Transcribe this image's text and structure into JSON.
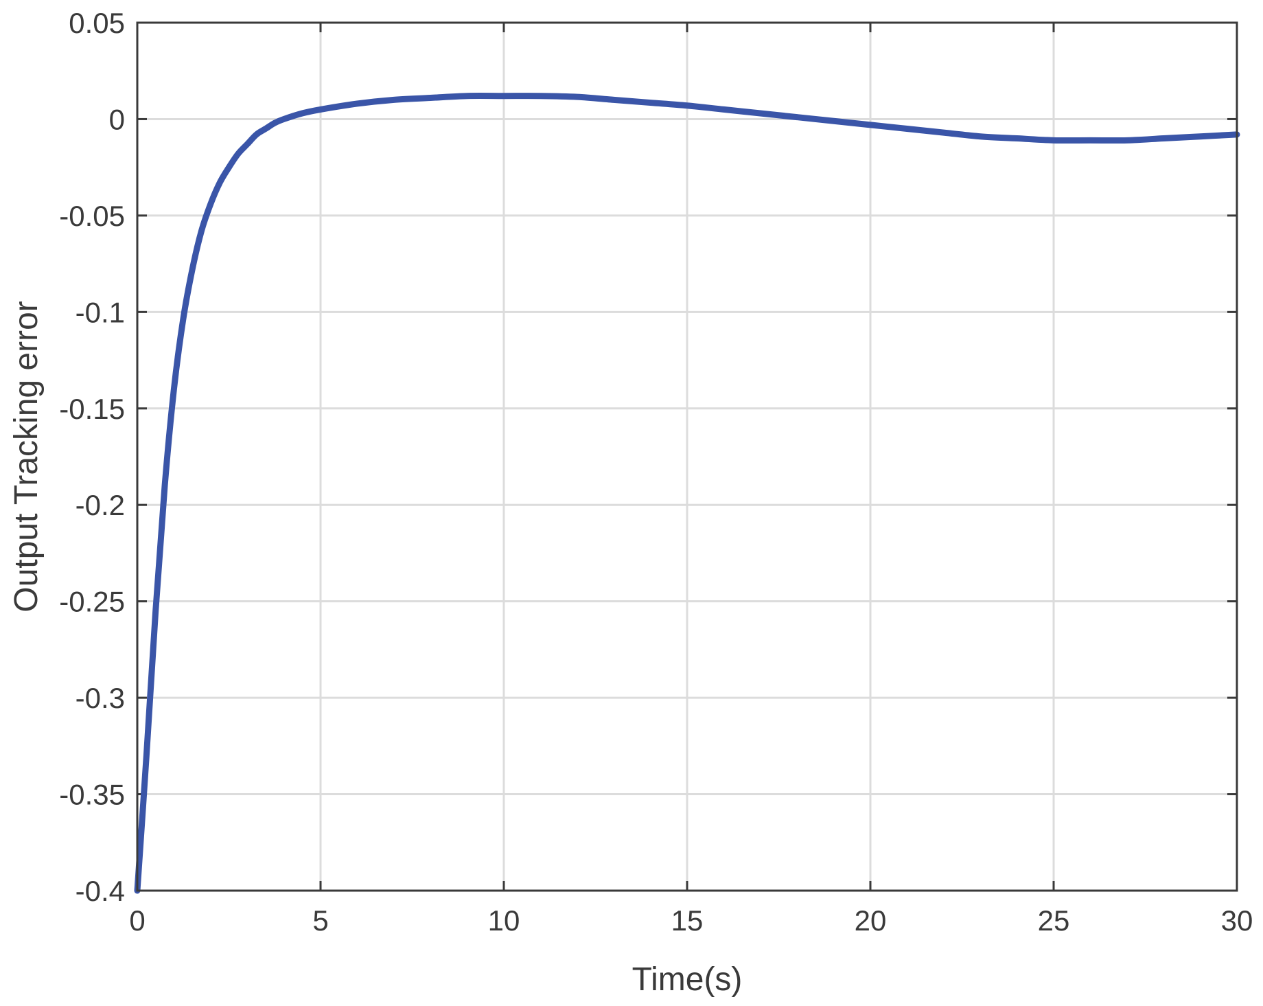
{
  "chart_data": {
    "type": "line",
    "title": "",
    "xlabel": "Time(s)",
    "ylabel": "Output Tracking error",
    "xlim": [
      0,
      30
    ],
    "ylim": [
      -0.4,
      0.05
    ],
    "xticks": [
      "0",
      "5",
      "10",
      "15",
      "20",
      "25",
      "30"
    ],
    "yticks": [
      "0.05",
      "0",
      "-0.05",
      "-0.1",
      "-0.15",
      "-0.2",
      "-0.25",
      "-0.3",
      "-0.35",
      "-0.4"
    ],
    "grid": true,
    "series": [
      {
        "color": "#3a55a8",
        "x": [
          0,
          0.25,
          0.5,
          0.75,
          1.0,
          1.25,
          1.5,
          1.75,
          2.0,
          2.25,
          2.5,
          2.75,
          3.0,
          3.25,
          3.5,
          3.75,
          4.0,
          4.5,
          5.0,
          6.0,
          7.0,
          8.0,
          9.0,
          10.0,
          11.0,
          12.0,
          13.0,
          14.0,
          15.0,
          16.0,
          17.0,
          18.0,
          19.0,
          20.0,
          21.0,
          22.0,
          23.0,
          24.0,
          25.0,
          26.0,
          27.0,
          28.0,
          29.0,
          30.0
        ],
        "y": [
          -0.4,
          -0.33,
          -0.255,
          -0.19,
          -0.14,
          -0.104,
          -0.078,
          -0.058,
          -0.044,
          -0.033,
          -0.025,
          -0.018,
          -0.013,
          -0.008,
          -0.005,
          -0.002,
          0.0,
          0.003,
          0.005,
          0.008,
          0.01,
          0.011,
          0.012,
          0.012,
          0.012,
          0.0115,
          0.01,
          0.0085,
          0.007,
          0.005,
          0.003,
          0.001,
          -0.001,
          -0.003,
          -0.005,
          -0.007,
          -0.009,
          -0.01,
          -0.011,
          -0.011,
          -0.011,
          -0.01,
          -0.009,
          -0.008
        ]
      }
    ]
  }
}
